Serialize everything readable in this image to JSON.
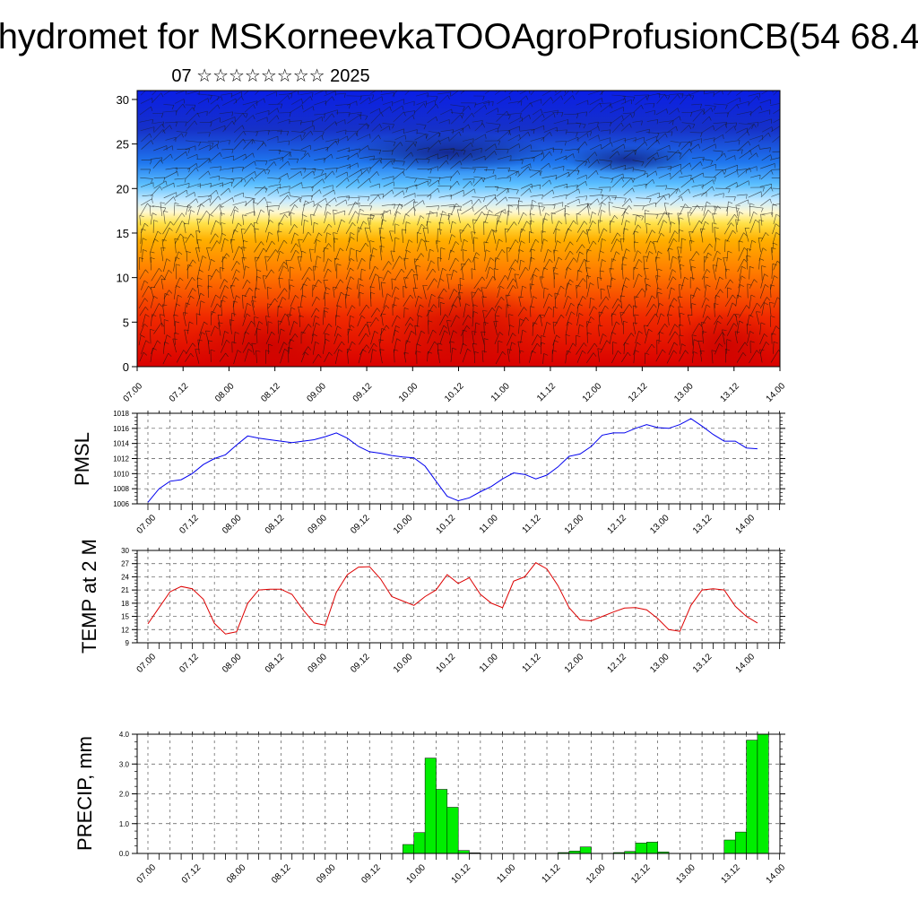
{
  "header": {
    "title": "hydromet for MSKorneevkaTOOAgroProfusionCB(54 68.4",
    "subtitle": "07 ☆☆☆☆☆☆☆☆ 2025"
  },
  "time_ticks": [
    "07.00",
    "07.12",
    "08.00",
    "08.12",
    "09.00",
    "09.12",
    "10.00",
    "10.12",
    "11.00",
    "11.12",
    "12.00",
    "12.12",
    "13.00",
    "13.12",
    "14.00"
  ],
  "chart_data": [
    {
      "id": "profile",
      "type": "heatmap",
      "title": "",
      "xlabel": "",
      "ylabel": "",
      "ylim": [
        0,
        31
      ],
      "yticks": [
        "0",
        "5",
        "10",
        "15",
        "20",
        "25",
        "30"
      ],
      "x_ticks": [
        "07.00",
        "07.12",
        "08.00",
        "08.12",
        "09.00",
        "09.12",
        "10.00",
        "10.12",
        "11.00",
        "11.12",
        "12.00",
        "12.12",
        "13.00",
        "13.12",
        "14.00"
      ],
      "colors": {
        "low": "#e10000",
        "mid": "#ffd83a",
        "high": "#0a1ee6"
      },
      "grid": false
    },
    {
      "id": "pmsl",
      "type": "line",
      "ylabel": "PMSL",
      "ylim": [
        1006,
        1018
      ],
      "yticks": [
        "1006",
        "1008",
        "1010",
        "1012",
        "1014",
        "1016",
        "1018"
      ],
      "color": "#0000ee",
      "x": [
        0,
        3,
        6,
        9,
        12,
        15,
        18,
        21,
        24,
        27,
        30,
        33,
        36,
        39,
        42,
        45,
        48,
        51,
        54,
        57,
        60,
        63,
        66,
        69,
        72,
        75,
        78,
        81,
        84,
        87,
        90,
        93,
        96,
        99,
        102,
        105,
        108,
        111,
        114,
        117,
        120,
        123,
        126,
        129,
        132,
        135,
        138,
        141,
        144,
        147,
        150,
        153,
        156,
        159,
        162,
        165
      ],
      "values": [
        1006.2,
        1008.0,
        1009.0,
        1009.2,
        1010.0,
        1011.2,
        1012.0,
        1012.5,
        1013.8,
        1015.0,
        1014.7,
        1014.5,
        1014.3,
        1014.1,
        1014.3,
        1014.5,
        1014.9,
        1015.4,
        1014.7,
        1013.6,
        1012.9,
        1012.7,
        1012.4,
        1012.2,
        1012.1,
        1011.0,
        1009.0,
        1007.0,
        1006.4,
        1006.8,
        1007.6,
        1008.3,
        1009.3,
        1010.1,
        1009.9,
        1009.3,
        1009.8,
        1010.9,
        1012.3,
        1012.6,
        1013.6,
        1015.1,
        1015.4,
        1015.4,
        1016.0,
        1016.5,
        1016.1,
        1016.0,
        1016.5,
        1017.3,
        1016.3,
        1015.2,
        1014.3,
        1014.3,
        1013.4,
        1013.3
      ]
    },
    {
      "id": "temp",
      "type": "line",
      "ylabel": "TEMP at 2 M",
      "ylim": [
        9,
        30
      ],
      "yticks": [
        "9",
        "12",
        "15",
        "18",
        "21",
        "24",
        "27",
        "30"
      ],
      "color": "#dd0000",
      "x": [
        0,
        3,
        6,
        9,
        12,
        15,
        18,
        21,
        24,
        27,
        30,
        33,
        36,
        39,
        42,
        45,
        48,
        51,
        54,
        57,
        60,
        63,
        66,
        69,
        72,
        75,
        78,
        81,
        84,
        87,
        90,
        93,
        96,
        99,
        102,
        105,
        108,
        111,
        114,
        117,
        120,
        123,
        126,
        129,
        132,
        135,
        138,
        141,
        144,
        147,
        150,
        153,
        156,
        159,
        162,
        165
      ],
      "values": [
        13.3,
        17.0,
        20.6,
        21.8,
        21.3,
        18.9,
        13.4,
        11.0,
        11.5,
        18.0,
        21.0,
        21.2,
        21.2,
        20.0,
        16.5,
        13.5,
        13.0,
        20.5,
        24.5,
        26.2,
        26.3,
        23.5,
        19.5,
        18.5,
        17.5,
        19.5,
        21.0,
        24.5,
        22.5,
        23.8,
        20.0,
        18.0,
        17.0,
        23.0,
        24.0,
        27.2,
        25.8,
        22.0,
        17.0,
        14.2,
        14.0,
        15.0,
        16.0,
        16.9,
        17.0,
        16.5,
        14.5,
        12.0,
        11.6,
        17.5,
        21.0,
        21.3,
        21.0,
        17.3,
        15.0,
        13.5
      ]
    },
    {
      "id": "precip",
      "type": "bar",
      "ylabel": "PRECIP, mm",
      "ylim": [
        0,
        4
      ],
      "yticks": [
        "0.0",
        "1.0",
        "2.0",
        "3.0",
        "4.0"
      ],
      "color": "#00ee00",
      "bar_width_hours": 3,
      "x": [
        72,
        75,
        78,
        81,
        84,
        87,
        90,
        114,
        117,
        120,
        129,
        132,
        135,
        138,
        141,
        159,
        162,
        165
      ],
      "values": [
        0.3,
        0.7,
        3.2,
        2.15,
        1.55,
        0.1,
        0.02,
        0.03,
        0.08,
        0.22,
        0.03,
        0.07,
        0.35,
        0.38,
        0.05,
        0.45,
        0.72,
        3.8
      ]
    },
    {
      "id": "precip-last",
      "type": "bar",
      "note_hidden": true,
      "x": [
        168
      ],
      "values": [
        4.0
      ]
    }
  ]
}
